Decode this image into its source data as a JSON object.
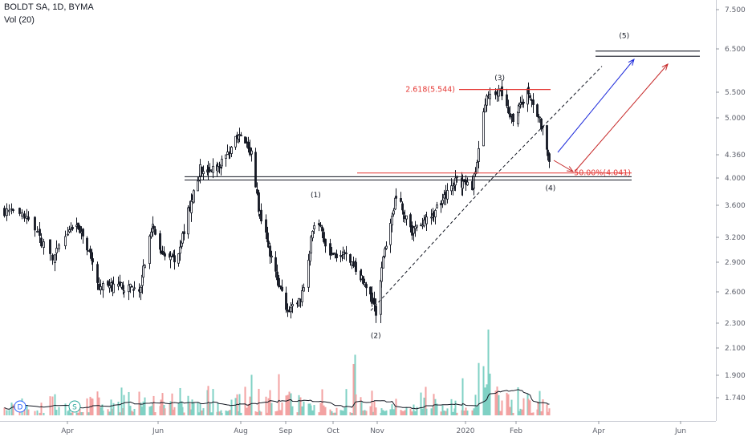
{
  "header": {
    "symbol_line": "BOLDT SA, 1D, BYMA",
    "indicator_line": "Vol (20)"
  },
  "chart_data": {
    "type": "candlestick",
    "symbol": "BOLDT SA",
    "interval": "1D",
    "exchange": "BYMA",
    "x_ticks": [
      "Apr",
      "Jun",
      "Aug",
      "Sep",
      "Oct",
      "Nov",
      "2020",
      "Feb",
      "Apr",
      "Jun"
    ],
    "y_ticks": [
      "7.500",
      "6.500",
      "5.500",
      "5.000",
      "4.360",
      "4.000",
      "3.600",
      "3.200",
      "2.900",
      "2.600",
      "2.300",
      "2.100",
      "1.900",
      "1.740"
    ],
    "y_scale": "log",
    "price_path": [
      {
        "date": "2019-03-01",
        "price": 3.55
      },
      {
        "date": "2019-03-12",
        "price": 3.45
      },
      {
        "date": "2019-03-25",
        "price": 2.95
      },
      {
        "date": "2019-04-05",
        "price": 3.38
      },
      {
        "date": "2019-04-15",
        "price": 3.05
      },
      {
        "date": "2019-04-22",
        "price": 2.65
      },
      {
        "date": "2019-05-01",
        "price": 2.65
      },
      {
        "date": "2019-05-20",
        "price": 2.65
      },
      {
        "date": "2019-05-28",
        "price": 3.35
      },
      {
        "date": "2019-06-05",
        "price": 2.95
      },
      {
        "date": "2019-06-15",
        "price": 2.95
      },
      {
        "date": "2019-06-25",
        "price": 3.65
      },
      {
        "date": "2019-07-02",
        "price": 4.15
      },
      {
        "date": "2019-07-10",
        "price": 4.1
      },
      {
        "date": "2019-07-20",
        "price": 4.3
      },
      {
        "date": "2019-07-30",
        "price": 4.7
      },
      {
        "date": "2019-08-08",
        "price": 4.4
      },
      {
        "date": "2019-08-13",
        "price": 3.55
      },
      {
        "date": "2019-08-22",
        "price": 2.95
      },
      {
        "date": "2019-09-02",
        "price": 2.4
      },
      {
        "date": "2019-09-12",
        "price": 2.6
      },
      {
        "date": "2019-09-20",
        "price": 3.5
      },
      {
        "date": "2019-09-28",
        "price": 2.95
      },
      {
        "date": "2019-10-10",
        "price": 3.0
      },
      {
        "date": "2019-10-25",
        "price": 2.65
      },
      {
        "date": "2019-10-31",
        "price": 2.4
      },
      {
        "date": "2019-11-08",
        "price": 3.25
      },
      {
        "date": "2019-11-14",
        "price": 3.75
      },
      {
        "date": "2019-11-25",
        "price": 3.25
      },
      {
        "date": "2019-12-10",
        "price": 3.5
      },
      {
        "date": "2019-12-25",
        "price": 3.95
      },
      {
        "date": "2020-01-05",
        "price": 3.85
      },
      {
        "date": "2020-01-09",
        "price": 4.45
      },
      {
        "date": "2020-01-14",
        "price": 5.45
      },
      {
        "date": "2020-01-22",
        "price": 5.55
      },
      {
        "date": "2020-01-30",
        "price": 4.95
      },
      {
        "date": "2020-02-10",
        "price": 5.55
      },
      {
        "date": "2020-02-18",
        "price": 4.95
      },
      {
        "date": "2020-02-26",
        "price": 4.2
      }
    ],
    "volume_ma_length": 20,
    "annotations": {
      "waves": [
        {
          "label": "(1)",
          "date": "2019-09-20",
          "price": 3.72
        },
        {
          "label": "(2)",
          "date": "2019-10-31",
          "price": 2.18
        },
        {
          "label": "(3)",
          "date": "2020-01-22",
          "price": 5.78
        },
        {
          "label": "(4)",
          "date": "2020-02-26",
          "price": 3.82
        },
        {
          "label": "(5)",
          "date": "2020-04-20",
          "price": 6.78
        }
      ],
      "fib_extension": {
        "label": "2.618(5.544)",
        "price": 5.544
      },
      "fib_retracement": {
        "label": "50.00%(4.041)",
        "price": 4.041
      },
      "support_lines": [
        4.02,
        3.97
      ],
      "target_lines": [
        6.45,
        6.33
      ],
      "event_markers": [
        "D",
        "S"
      ]
    }
  }
}
